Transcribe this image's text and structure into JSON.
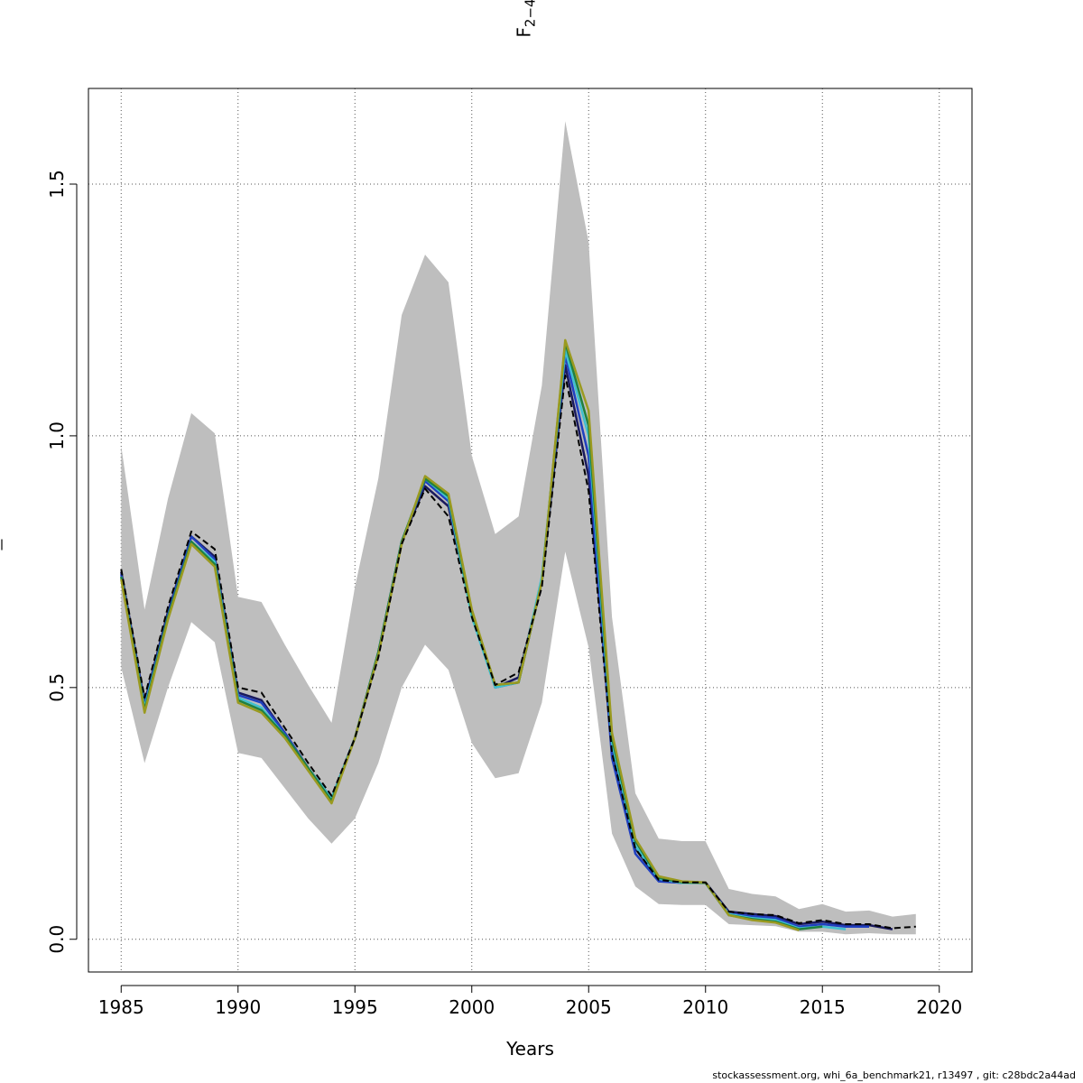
{
  "chart_data": {
    "type": "line",
    "title": "",
    "xlabel": "Years",
    "ylabel": "F",
    "ylabel_subscript": "2−4",
    "xlim": [
      1983.6,
      2021.4
    ],
    "ylim": [
      -0.065,
      1.69
    ],
    "xticks": [
      1985,
      1990,
      1995,
      2000,
      2005,
      2010,
      2015,
      2020
    ],
    "yticks": [
      0.0,
      0.5,
      1.0,
      1.5
    ],
    "ytick_labels": [
      "0.0",
      "0.5",
      "1.0",
      "1.5"
    ],
    "grid": true,
    "band": {
      "x": [
        1985,
        1986,
        1987,
        1988,
        1989,
        1990,
        1991,
        1992,
        1993,
        1994,
        1995,
        1996,
        1997,
        1998,
        1999,
        2000,
        2001,
        2002,
        2003,
        2004,
        2005,
        2006,
        2007,
        2008,
        2009,
        2010,
        2011,
        2012,
        2013,
        2014,
        2015,
        2016,
        2017,
        2018,
        2019
      ],
      "lower": [
        0.54,
        0.35,
        0.5,
        0.63,
        0.59,
        0.37,
        0.36,
        0.3,
        0.24,
        0.19,
        0.24,
        0.35,
        0.5,
        0.585,
        0.535,
        0.39,
        0.32,
        0.33,
        0.47,
        0.77,
        0.58,
        0.21,
        0.105,
        0.07,
        0.068,
        0.068,
        0.03,
        0.028,
        0.026,
        0.015,
        0.015,
        0.01,
        0.012,
        0.01,
        0.01
      ],
      "upper": [
        0.98,
        0.655,
        0.875,
        1.045,
        1.005,
        0.68,
        0.67,
        0.585,
        0.505,
        0.43,
        0.7,
        0.915,
        1.24,
        1.36,
        1.305,
        0.96,
        0.805,
        0.84,
        1.1,
        1.625,
        1.385,
        0.64,
        0.29,
        0.2,
        0.195,
        0.195,
        0.1,
        0.09,
        0.085,
        0.06,
        0.07,
        0.055,
        0.057,
        0.045,
        0.05
      ]
    },
    "series": [
      {
        "color": "#1a1a5e",
        "x": [
          1985,
          1986,
          1987,
          1988,
          1989,
          1990,
          1991,
          1992,
          1993,
          1994,
          1995,
          1996,
          1997,
          1998,
          1999,
          2000,
          2001,
          2002,
          2003,
          2004,
          2005,
          2006,
          2007,
          2008,
          2009,
          2010,
          2011,
          2012,
          2013,
          2014,
          2015,
          2016,
          2017,
          2018
        ],
        "values": [
          0.73,
          0.47,
          0.65,
          0.8,
          0.76,
          0.49,
          0.475,
          0.41,
          0.34,
          0.28,
          0.4,
          0.57,
          0.79,
          0.9,
          0.86,
          0.65,
          0.5,
          0.52,
          0.71,
          1.14,
          0.92,
          0.38,
          0.18,
          0.118,
          0.113,
          0.113,
          0.055,
          0.05,
          0.046,
          0.03,
          0.035,
          0.028,
          0.028,
          0.02
        ]
      },
      {
        "color": "#2040c0",
        "x": [
          1985,
          1986,
          1987,
          1988,
          1989,
          1990,
          1991,
          1992,
          1993,
          1994,
          1995,
          1996,
          1997,
          1998,
          1999,
          2000,
          2001,
          2002,
          2003,
          2004,
          2005,
          2006,
          2007,
          2008,
          2009,
          2010,
          2011,
          2012,
          2013,
          2014,
          2015,
          2016,
          2017
        ],
        "values": [
          0.725,
          0.465,
          0.645,
          0.8,
          0.755,
          0.485,
          0.47,
          0.41,
          0.34,
          0.28,
          0.4,
          0.57,
          0.79,
          0.91,
          0.87,
          0.65,
          0.5,
          0.51,
          0.71,
          1.16,
          0.96,
          0.36,
          0.17,
          0.115,
          0.112,
          0.113,
          0.05,
          0.046,
          0.042,
          0.025,
          0.03,
          0.025,
          0.025
        ]
      },
      {
        "color": "#40c0d0",
        "x": [
          1985,
          1986,
          1987,
          1988,
          1989,
          1990,
          1991,
          1992,
          1993,
          1994,
          1995,
          1996,
          1997,
          1998,
          1999,
          2000,
          2001,
          2002,
          2003,
          2004,
          2005,
          2006,
          2007,
          2008,
          2009,
          2010,
          2011,
          2012,
          2013,
          2014,
          2015,
          2016
        ],
        "values": [
          0.72,
          0.46,
          0.64,
          0.79,
          0.75,
          0.48,
          0.46,
          0.405,
          0.34,
          0.28,
          0.4,
          0.57,
          0.79,
          0.915,
          0.875,
          0.64,
          0.5,
          0.51,
          0.72,
          1.17,
          1.0,
          0.39,
          0.185,
          0.12,
          0.112,
          0.112,
          0.05,
          0.042,
          0.038,
          0.022,
          0.025,
          0.02
        ]
      },
      {
        "color": "#208040",
        "x": [
          1985,
          1986,
          1987,
          1988,
          1989,
          1990,
          1991,
          1992,
          1993,
          1994,
          1995,
          1996,
          1997,
          1998,
          1999,
          2000,
          2001,
          2002,
          2003,
          2004,
          2005,
          2006,
          2007,
          2008,
          2009,
          2010,
          2011,
          2012,
          2013,
          2014,
          2015
        ],
        "values": [
          0.72,
          0.455,
          0.64,
          0.79,
          0.745,
          0.475,
          0.455,
          0.405,
          0.34,
          0.275,
          0.4,
          0.57,
          0.79,
          0.915,
          0.88,
          0.65,
          0.505,
          0.51,
          0.71,
          1.185,
          1.02,
          0.4,
          0.195,
          0.122,
          0.113,
          0.112,
          0.048,
          0.04,
          0.035,
          0.02,
          0.025
        ]
      },
      {
        "color": "#9a9a20",
        "x": [
          1985,
          1986,
          1987,
          1988,
          1989,
          1990,
          1991,
          1992,
          1993,
          1994,
          1995,
          1996,
          1997,
          1998,
          1999,
          2000,
          2001,
          2002,
          2003,
          2004,
          2005,
          2006,
          2007,
          2008,
          2009,
          2010,
          2011,
          2012,
          2013,
          2014
        ],
        "values": [
          0.715,
          0.45,
          0.635,
          0.785,
          0.74,
          0.47,
          0.45,
          0.4,
          0.335,
          0.27,
          0.4,
          0.565,
          0.785,
          0.92,
          0.885,
          0.655,
          0.505,
          0.51,
          0.71,
          1.19,
          1.05,
          0.41,
          0.2,
          0.125,
          0.115,
          0.113,
          0.048,
          0.038,
          0.033,
          0.018
        ]
      },
      {
        "color": "#000000",
        "dashed": true,
        "x": [
          1985,
          1986,
          1987,
          1988,
          1989,
          1990,
          1991,
          1992,
          1993,
          1994,
          1995,
          1996,
          1997,
          1998,
          1999,
          2000,
          2001,
          2002,
          2003,
          2004,
          2005,
          2006,
          2007,
          2008,
          2009,
          2010,
          2011,
          2012,
          2013,
          2014,
          2015,
          2016,
          2017,
          2018,
          2019
        ],
        "values": [
          0.735,
          0.48,
          0.66,
          0.81,
          0.775,
          0.5,
          0.49,
          0.42,
          0.35,
          0.285,
          0.4,
          0.56,
          0.785,
          0.895,
          0.84,
          0.64,
          0.505,
          0.53,
          0.7,
          1.12,
          0.89,
          0.37,
          0.18,
          0.118,
          0.113,
          0.113,
          0.055,
          0.05,
          0.048,
          0.032,
          0.038,
          0.03,
          0.03,
          0.022,
          0.025
        ]
      }
    ]
  },
  "footer": "stockassessment.org, whi_6a_benchmark21, r13497 , git: c28bdc2a44ad"
}
